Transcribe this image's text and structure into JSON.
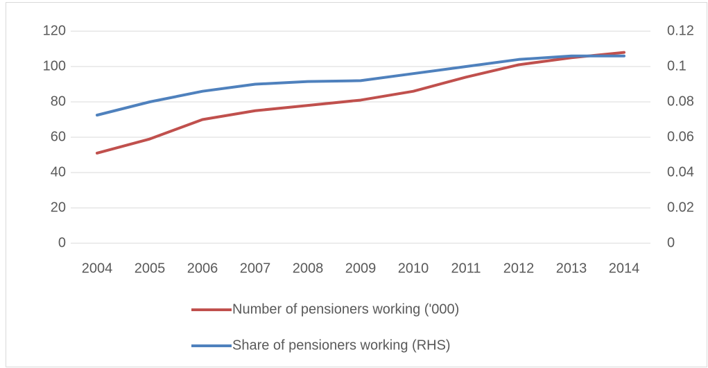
{
  "chart_data": {
    "type": "line",
    "categories": [
      "2004",
      "2005",
      "2006",
      "2007",
      "2008",
      "2009",
      "2010",
      "2011",
      "2012",
      "2013",
      "2014"
    ],
    "series": [
      {
        "name": "Number of pensioners working ('000)",
        "color": "#c0504d",
        "values": [
          51,
          59,
          70,
          75,
          78,
          81,
          86,
          94,
          101,
          105,
          108
        ]
      },
      {
        "name": "Share of pensioners working (RHS)",
        "color": "#4f81bd",
        "axis": "y2",
        "values": [
          0.0725,
          0.08,
          0.086,
          0.09,
          0.0915,
          0.092,
          0.096,
          0.1,
          0.104,
          0.106,
          0.106
        ]
      }
    ],
    "ylim": [
      0,
      120
    ],
    "yticks": [
      0,
      20,
      40,
      60,
      80,
      100,
      120
    ],
    "y2lim": [
      0,
      0.12
    ],
    "y2ticks": [
      0,
      0.02,
      0.04,
      0.06,
      0.08,
      0.1,
      0.12
    ],
    "grid": true,
    "legend": "bottom"
  }
}
